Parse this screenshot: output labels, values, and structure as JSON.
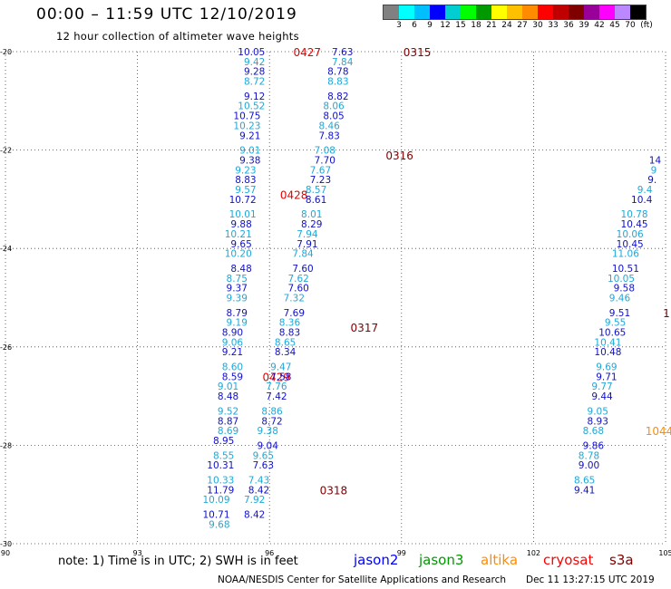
{
  "header": {
    "title": "00:00 – 11:59 UTC 12/10/2019",
    "subtitle": "12 hour collection of altimeter wave heights"
  },
  "colorbar": {
    "unit": "(ft)",
    "colors": [
      "#808080",
      "#00ffff",
      "#00bfff",
      "#0000ff",
      "#00ced1",
      "#00ff00",
      "#009900",
      "#ffff00",
      "#ffc000",
      "#ff8c00",
      "#ff0000",
      "#c00000",
      "#800000",
      "#990099",
      "#ff00ff",
      "#bb88ff",
      "#000000"
    ],
    "labels": [
      "3",
      "6",
      "9",
      "12",
      "15",
      "18",
      "21",
      "24",
      "27",
      "30",
      "33",
      "36",
      "39",
      "42",
      "45",
      "70"
    ]
  },
  "axes": {
    "lon_ticks": [
      "90",
      "93",
      "96",
      "99",
      "102",
      "105"
    ],
    "lat_ticks": [
      "-20",
      "-22",
      "-24",
      "-26",
      "-28",
      "-30"
    ]
  },
  "chart_data": {
    "type": "scatter",
    "xlim": [
      90,
      105
    ],
    "ylim": [
      -30,
      -20
    ],
    "grid": true,
    "tracks": [
      {
        "name": "jason2",
        "color": "#1010c8",
        "alt_color": "#1fa8d8",
        "points": [
          {
            "lon": 95.9,
            "lat": -20.0,
            "swh": "10.05"
          },
          {
            "lon": 95.9,
            "lat": -20.2,
            "swh": "9.42"
          },
          {
            "lon": 95.9,
            "lat": -20.4,
            "swh": "9.28"
          },
          {
            "lon": 95.9,
            "lat": -20.6,
            "swh": "8.72"
          },
          {
            "lon": 95.9,
            "lat": -20.9,
            "swh": "9.12"
          },
          {
            "lon": 95.9,
            "lat": -21.1,
            "swh": "10.52"
          },
          {
            "lon": 95.8,
            "lat": -21.3,
            "swh": "10.75"
          },
          {
            "lon": 95.8,
            "lat": -21.5,
            "swh": "10.23"
          },
          {
            "lon": 95.8,
            "lat": -21.7,
            "swh": "9.21"
          },
          {
            "lon": 95.8,
            "lat": -22.0,
            "swh": "9.01"
          },
          {
            "lon": 95.8,
            "lat": -22.2,
            "swh": "9.38"
          },
          {
            "lon": 95.7,
            "lat": -22.4,
            "swh": "9.23"
          },
          {
            "lon": 95.7,
            "lat": -22.6,
            "swh": "8.83"
          },
          {
            "lon": 95.7,
            "lat": -22.8,
            "swh": "9.57"
          },
          {
            "lon": 95.7,
            "lat": -23.0,
            "swh": "10.72"
          },
          {
            "lon": 95.7,
            "lat": -23.3,
            "swh": "10.01"
          },
          {
            "lon": 95.6,
            "lat": -23.5,
            "swh": "9.88"
          },
          {
            "lon": 95.6,
            "lat": -23.7,
            "swh": "10.21"
          },
          {
            "lon": 95.6,
            "lat": -23.9,
            "swh": "9.65"
          },
          {
            "lon": 95.6,
            "lat": -24.1,
            "swh": "10.20"
          },
          {
            "lon": 95.6,
            "lat": -24.4,
            "swh": "8.48"
          },
          {
            "lon": 95.5,
            "lat": -24.6,
            "swh": "8.75"
          },
          {
            "lon": 95.5,
            "lat": -24.8,
            "swh": "9.37"
          },
          {
            "lon": 95.5,
            "lat": -25.0,
            "swh": "9.39"
          },
          {
            "lon": 95.5,
            "lat": -25.3,
            "swh": "8.79"
          },
          {
            "lon": 95.5,
            "lat": -25.5,
            "swh": "9.19"
          },
          {
            "lon": 95.4,
            "lat": -25.7,
            "swh": "8.90"
          },
          {
            "lon": 95.4,
            "lat": -25.9,
            "swh": "9.06"
          },
          {
            "lon": 95.4,
            "lat": -26.1,
            "swh": "9.21"
          },
          {
            "lon": 95.4,
            "lat": -26.4,
            "swh": "8.60"
          },
          {
            "lon": 95.4,
            "lat": -26.6,
            "swh": "8.59"
          },
          {
            "lon": 95.3,
            "lat": -26.8,
            "swh": "9.01"
          },
          {
            "lon": 95.3,
            "lat": -27.0,
            "swh": "8.48"
          },
          {
            "lon": 95.3,
            "lat": -27.3,
            "swh": "9.52"
          },
          {
            "lon": 95.3,
            "lat": -27.5,
            "swh": "8.87"
          },
          {
            "lon": 95.3,
            "lat": -27.7,
            "swh": "8.69"
          },
          {
            "lon": 95.2,
            "lat": -27.9,
            "swh": "8.95"
          },
          {
            "lon": 95.2,
            "lat": -28.2,
            "swh": "8.55"
          },
          {
            "lon": 95.2,
            "lat": -28.4,
            "swh": "10.31"
          },
          {
            "lon": 95.2,
            "lat": -28.7,
            "swh": "10.33"
          },
          {
            "lon": 95.2,
            "lat": -28.9,
            "swh": "11.79"
          },
          {
            "lon": 95.1,
            "lat": -29.1,
            "swh": "10.09"
          },
          {
            "lon": 95.1,
            "lat": -29.4,
            "swh": "10.71"
          },
          {
            "lon": 95.1,
            "lat": -29.6,
            "swh": "9.68"
          }
        ],
        "labels": [
          {
            "lon": 96.5,
            "lat": -20.0,
            "text": "0427"
          },
          {
            "lon": 96.2,
            "lat": -22.9,
            "text": "0428"
          },
          {
            "lon": 95.8,
            "lat": -26.6,
            "text": "0429"
          }
        ]
      },
      {
        "name": "jason2",
        "color": "#1010c8",
        "alt_color": "#1fa8d8",
        "points": [
          {
            "lon": 97.9,
            "lat": -20.0,
            "swh": "7.63"
          },
          {
            "lon": 97.9,
            "lat": -20.2,
            "swh": "7.84"
          },
          {
            "lon": 97.8,
            "lat": -20.4,
            "swh": "8.78"
          },
          {
            "lon": 97.8,
            "lat": -20.6,
            "swh": "8.83"
          },
          {
            "lon": 97.8,
            "lat": -20.9,
            "swh": "8.82"
          },
          {
            "lon": 97.7,
            "lat": -21.1,
            "swh": "8.06"
          },
          {
            "lon": 97.7,
            "lat": -21.3,
            "swh": "8.05"
          },
          {
            "lon": 97.6,
            "lat": -21.5,
            "swh": "8.46"
          },
          {
            "lon": 97.6,
            "lat": -21.7,
            "swh": "7.83"
          },
          {
            "lon": 97.5,
            "lat": -22.0,
            "swh": "7.08"
          },
          {
            "lon": 97.5,
            "lat": -22.2,
            "swh": "7.70"
          },
          {
            "lon": 97.4,
            "lat": -22.4,
            "swh": "7.67"
          },
          {
            "lon": 97.4,
            "lat": -22.6,
            "swh": "7.23"
          },
          {
            "lon": 97.3,
            "lat": -22.8,
            "swh": "8.57"
          },
          {
            "lon": 97.3,
            "lat": -23.0,
            "swh": "8.61"
          },
          {
            "lon": 97.2,
            "lat": -23.3,
            "swh": "8.01"
          },
          {
            "lon": 97.2,
            "lat": -23.5,
            "swh": "8.29"
          },
          {
            "lon": 97.1,
            "lat": -23.7,
            "swh": "7.94"
          },
          {
            "lon": 97.1,
            "lat": -23.9,
            "swh": "7.91"
          },
          {
            "lon": 97.0,
            "lat": -24.1,
            "swh": "7.84"
          },
          {
            "lon": 97.0,
            "lat": -24.4,
            "swh": "7.60"
          },
          {
            "lon": 96.9,
            "lat": -24.6,
            "swh": "7.62"
          },
          {
            "lon": 96.9,
            "lat": -24.8,
            "swh": "7.60"
          },
          {
            "lon": 96.8,
            "lat": -25.0,
            "swh": "7.32"
          },
          {
            "lon": 96.8,
            "lat": -25.3,
            "swh": "7.69"
          },
          {
            "lon": 96.7,
            "lat": -25.5,
            "swh": "8.36"
          },
          {
            "lon": 96.7,
            "lat": -25.7,
            "swh": "8.83"
          },
          {
            "lon": 96.6,
            "lat": -25.9,
            "swh": "8.65"
          },
          {
            "lon": 96.6,
            "lat": -26.1,
            "swh": "8.34"
          },
          {
            "lon": 96.5,
            "lat": -26.4,
            "swh": "9.47"
          },
          {
            "lon": 96.5,
            "lat": -26.6,
            "swh": "7.58"
          },
          {
            "lon": 96.4,
            "lat": -26.8,
            "swh": "7.76"
          },
          {
            "lon": 96.4,
            "lat": -27.0,
            "swh": "7.42"
          },
          {
            "lon": 96.3,
            "lat": -27.3,
            "swh": "8.86"
          },
          {
            "lon": 96.3,
            "lat": -27.5,
            "swh": "8.72"
          },
          {
            "lon": 96.2,
            "lat": -27.7,
            "swh": "9.38"
          },
          {
            "lon": 96.2,
            "lat": -28.0,
            "swh": "9.04"
          },
          {
            "lon": 96.1,
            "lat": -28.2,
            "swh": "9.65"
          },
          {
            "lon": 96.1,
            "lat": -28.4,
            "swh": "7.63"
          },
          {
            "lon": 96.0,
            "lat": -28.7,
            "swh": "7.43"
          },
          {
            "lon": 96.0,
            "lat": -28.9,
            "swh": "8.42"
          },
          {
            "lon": 95.9,
            "lat": -29.1,
            "swh": "7.92"
          },
          {
            "lon": 95.9,
            "lat": -29.4,
            "swh": "8.42"
          }
        ],
        "labels": [
          {
            "lon": 99.0,
            "lat": -20.0,
            "text": "0315"
          },
          {
            "lon": 98.6,
            "lat": -22.1,
            "text": "0316"
          },
          {
            "lon": 97.8,
            "lat": -25.6,
            "text": "0317"
          },
          {
            "lon": 97.1,
            "lat": -28.9,
            "text": "0318"
          }
        ]
      },
      {
        "name": "jason2",
        "color": "#1010c8",
        "alt_color": "#1fa8d8",
        "points": [
          {
            "lon": 104.9,
            "lat": -22.2,
            "swh": "14"
          },
          {
            "lon": 104.8,
            "lat": -22.4,
            "swh": "9"
          },
          {
            "lon": 104.8,
            "lat": -22.6,
            "swh": "9."
          },
          {
            "lon": 104.7,
            "lat": -22.8,
            "swh": "9.4"
          },
          {
            "lon": 104.7,
            "lat": -23.0,
            "swh": "10.4"
          },
          {
            "lon": 104.6,
            "lat": -23.3,
            "swh": "10.78"
          },
          {
            "lon": 104.6,
            "lat": -23.5,
            "swh": "10.45"
          },
          {
            "lon": 104.5,
            "lat": -23.7,
            "swh": "10.06"
          },
          {
            "lon": 104.5,
            "lat": -23.9,
            "swh": "10.45"
          },
          {
            "lon": 104.4,
            "lat": -24.1,
            "swh": "11.06"
          },
          {
            "lon": 104.4,
            "lat": -24.4,
            "swh": "10.51"
          },
          {
            "lon": 104.3,
            "lat": -24.6,
            "swh": "10.05"
          },
          {
            "lon": 104.3,
            "lat": -24.8,
            "swh": "9.58"
          },
          {
            "lon": 104.2,
            "lat": -25.0,
            "swh": "9.46"
          },
          {
            "lon": 104.2,
            "lat": -25.3,
            "swh": "9.51"
          },
          {
            "lon": 104.1,
            "lat": -25.5,
            "swh": "9.55"
          },
          {
            "lon": 104.1,
            "lat": -25.7,
            "swh": "10.65"
          },
          {
            "lon": 104.0,
            "lat": -25.9,
            "swh": "10.41"
          },
          {
            "lon": 104.0,
            "lat": -26.1,
            "swh": "10.48"
          },
          {
            "lon": 103.9,
            "lat": -26.4,
            "swh": "9.69"
          },
          {
            "lon": 103.9,
            "lat": -26.6,
            "swh": "9.71"
          },
          {
            "lon": 103.8,
            "lat": -26.8,
            "swh": "9.77"
          },
          {
            "lon": 103.8,
            "lat": -27.0,
            "swh": "9.44"
          },
          {
            "lon": 103.7,
            "lat": -27.3,
            "swh": "9.05"
          },
          {
            "lon": 103.7,
            "lat": -27.5,
            "swh": "8.93"
          },
          {
            "lon": 103.6,
            "lat": -27.7,
            "swh": "8.68"
          },
          {
            "lon": 103.6,
            "lat": -28.0,
            "swh": "9.86"
          },
          {
            "lon": 103.5,
            "lat": -28.2,
            "swh": "8.78"
          },
          {
            "lon": 103.5,
            "lat": -28.4,
            "swh": "9.00"
          },
          {
            "lon": 103.4,
            "lat": -28.7,
            "swh": "8.65"
          },
          {
            "lon": 103.4,
            "lat": -28.9,
            "swh": "9.41"
          }
        ],
        "labels": [
          {
            "lon": 104.9,
            "lat": -25.3,
            "text": "1"
          }
        ]
      },
      {
        "name": "altika",
        "color": "#ff8c00",
        "alt_color": "#ff8c00",
        "points": [],
        "labels": [
          {
            "lon": 104.5,
            "lat": -27.7,
            "text": "1044"
          }
        ]
      }
    ]
  },
  "footer": {
    "note": "note: 1) Time is in UTC; 2) SWH is in feet",
    "legend": [
      {
        "name": "jason2",
        "color": "#0000ff"
      },
      {
        "name": "jason3",
        "color": "#009900"
      },
      {
        "name": "altika",
        "color": "#ff8c00"
      },
      {
        "name": "cryosat",
        "color": "#ff0000"
      },
      {
        "name": "s3a",
        "color": "#800000"
      }
    ],
    "credit": "NOAA/NESDIS Center for Satellite Applications and Research",
    "timestamp": "Dec 11 13:27:15 UTC 2019"
  }
}
